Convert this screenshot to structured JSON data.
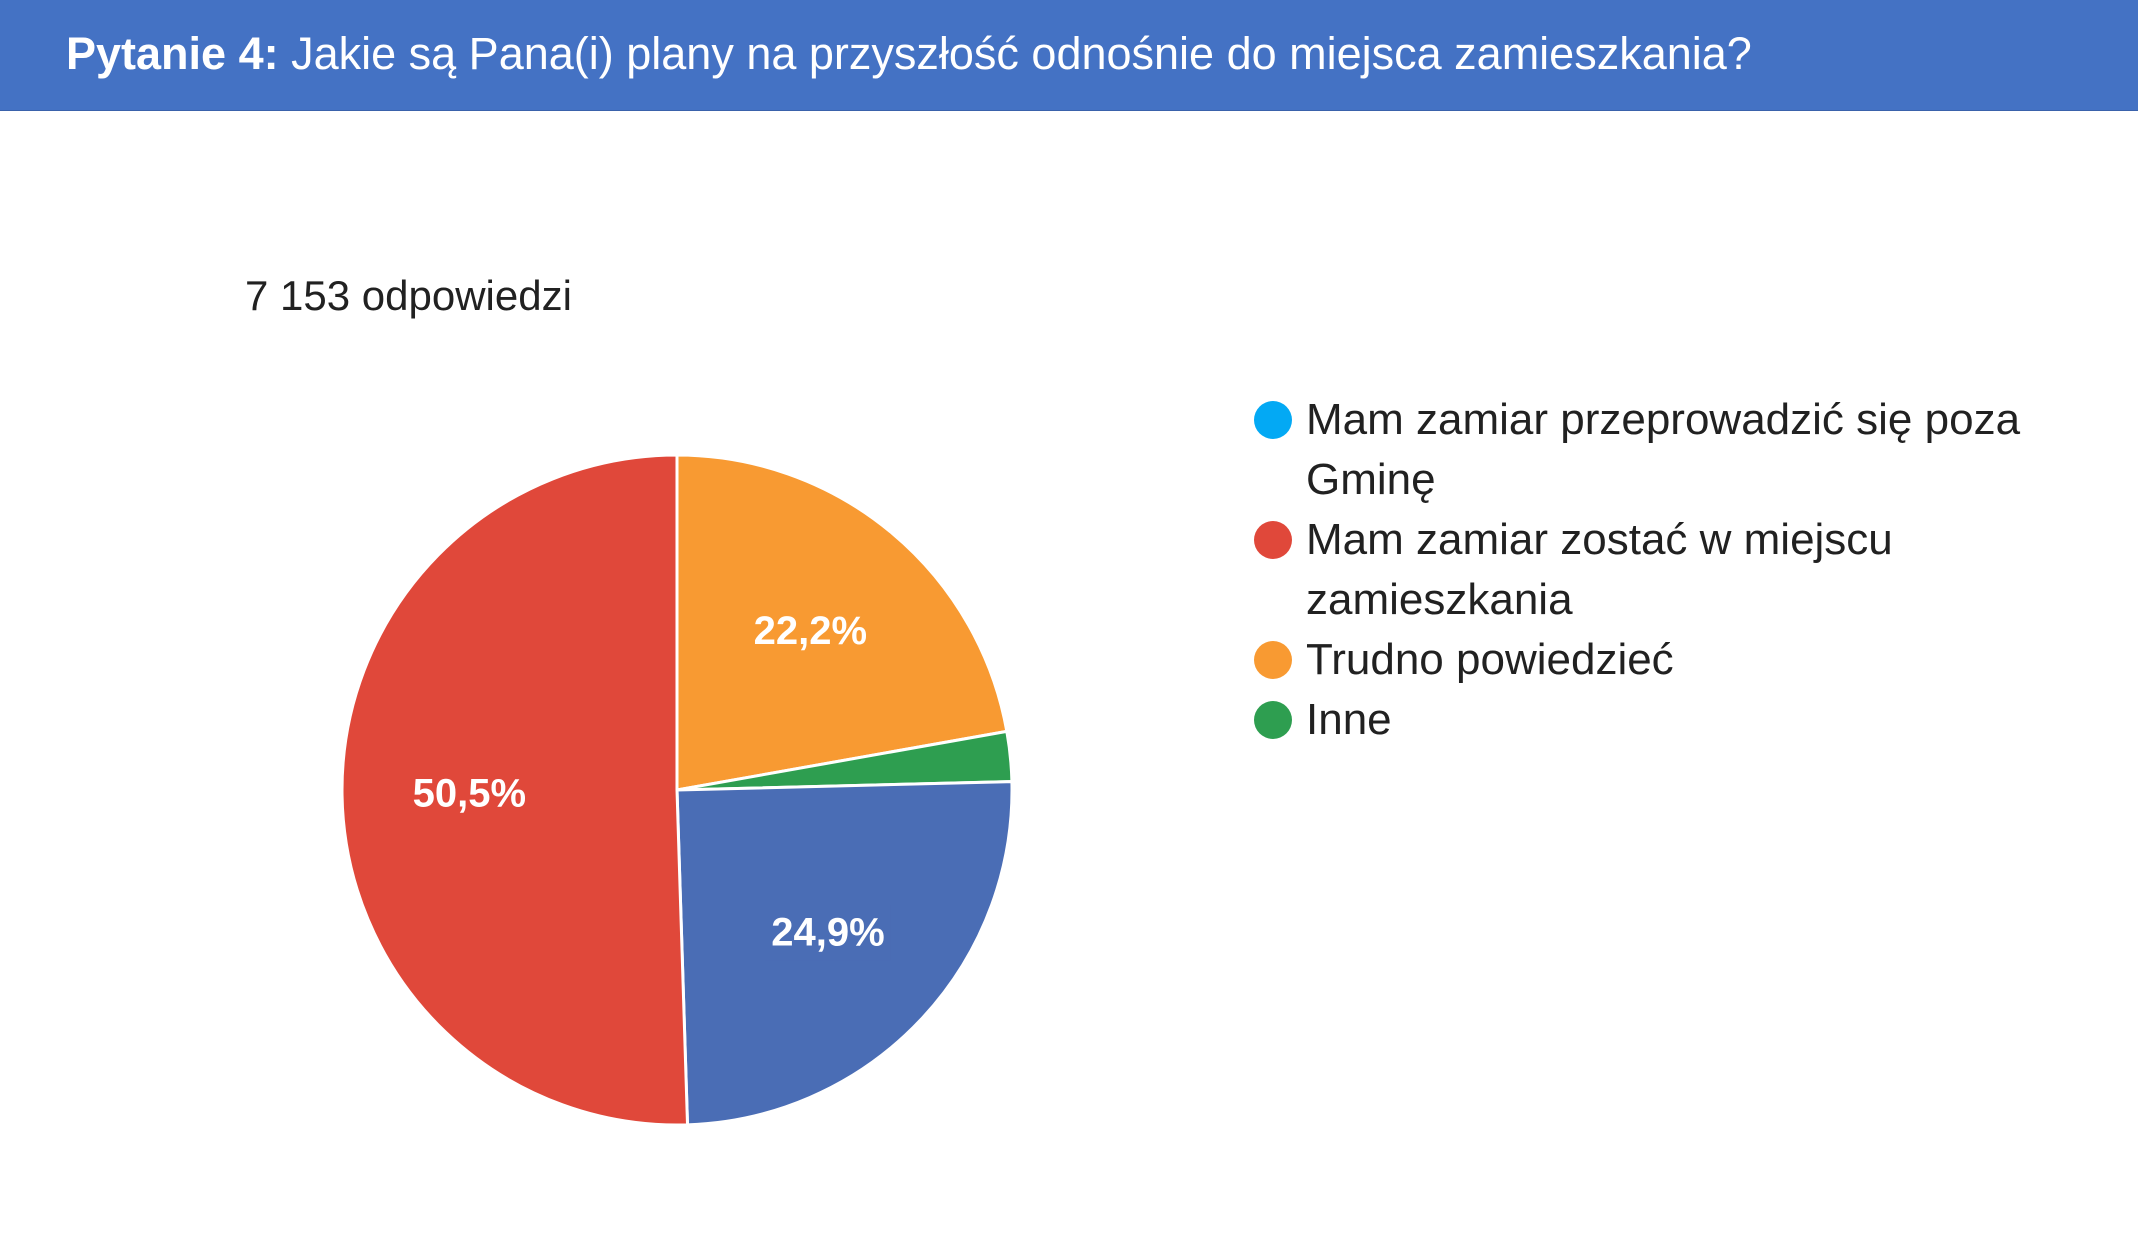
{
  "header": {
    "prefix": "Pytanie 4:",
    "question": " Jakie są Pana(i) plany na przyszłość odnośnie do miejsca zamieszkania?",
    "background_color": "#4472C4"
  },
  "response_count": "7 153 odpowiedzi",
  "chart_data": {
    "type": "pie",
    "title": "",
    "start_angle_deg": 90,
    "direction": "clockwise",
    "slices": [
      {
        "label": "Mam zamiar przeprowadzić się poza Gminę",
        "value": 0.0,
        "display": "",
        "color": "#03A9F4"
      },
      {
        "label": "Trudno powiedzieć",
        "value": 22.2,
        "display": "22,2%",
        "color": "#F89A32"
      },
      {
        "label": "Inne",
        "value": 2.4,
        "display": "",
        "color": "#2E9E50"
      },
      {
        "label": "Mam zamiar przeprowadzić się poza Gminę",
        "value": 24.9,
        "display": "24,9%",
        "color": "#4A6DB5"
      },
      {
        "label": "Mam zamiar zostać w miejscu zamieszkania",
        "value": 50.5,
        "display": "50,5%",
        "color": "#E0483A"
      }
    ],
    "legend": [
      {
        "label": "Mam zamiar przeprowadzić się poza Gminę",
        "color": "#03A9F4"
      },
      {
        "label": "Mam zamiar zostać w miejscu zamieszkania",
        "color": "#E0483A"
      },
      {
        "label": "Trudno powiedzieć",
        "color": "#F89A32"
      },
      {
        "label": "Inne",
        "color": "#2E9E50"
      }
    ],
    "legend_position": "right"
  }
}
